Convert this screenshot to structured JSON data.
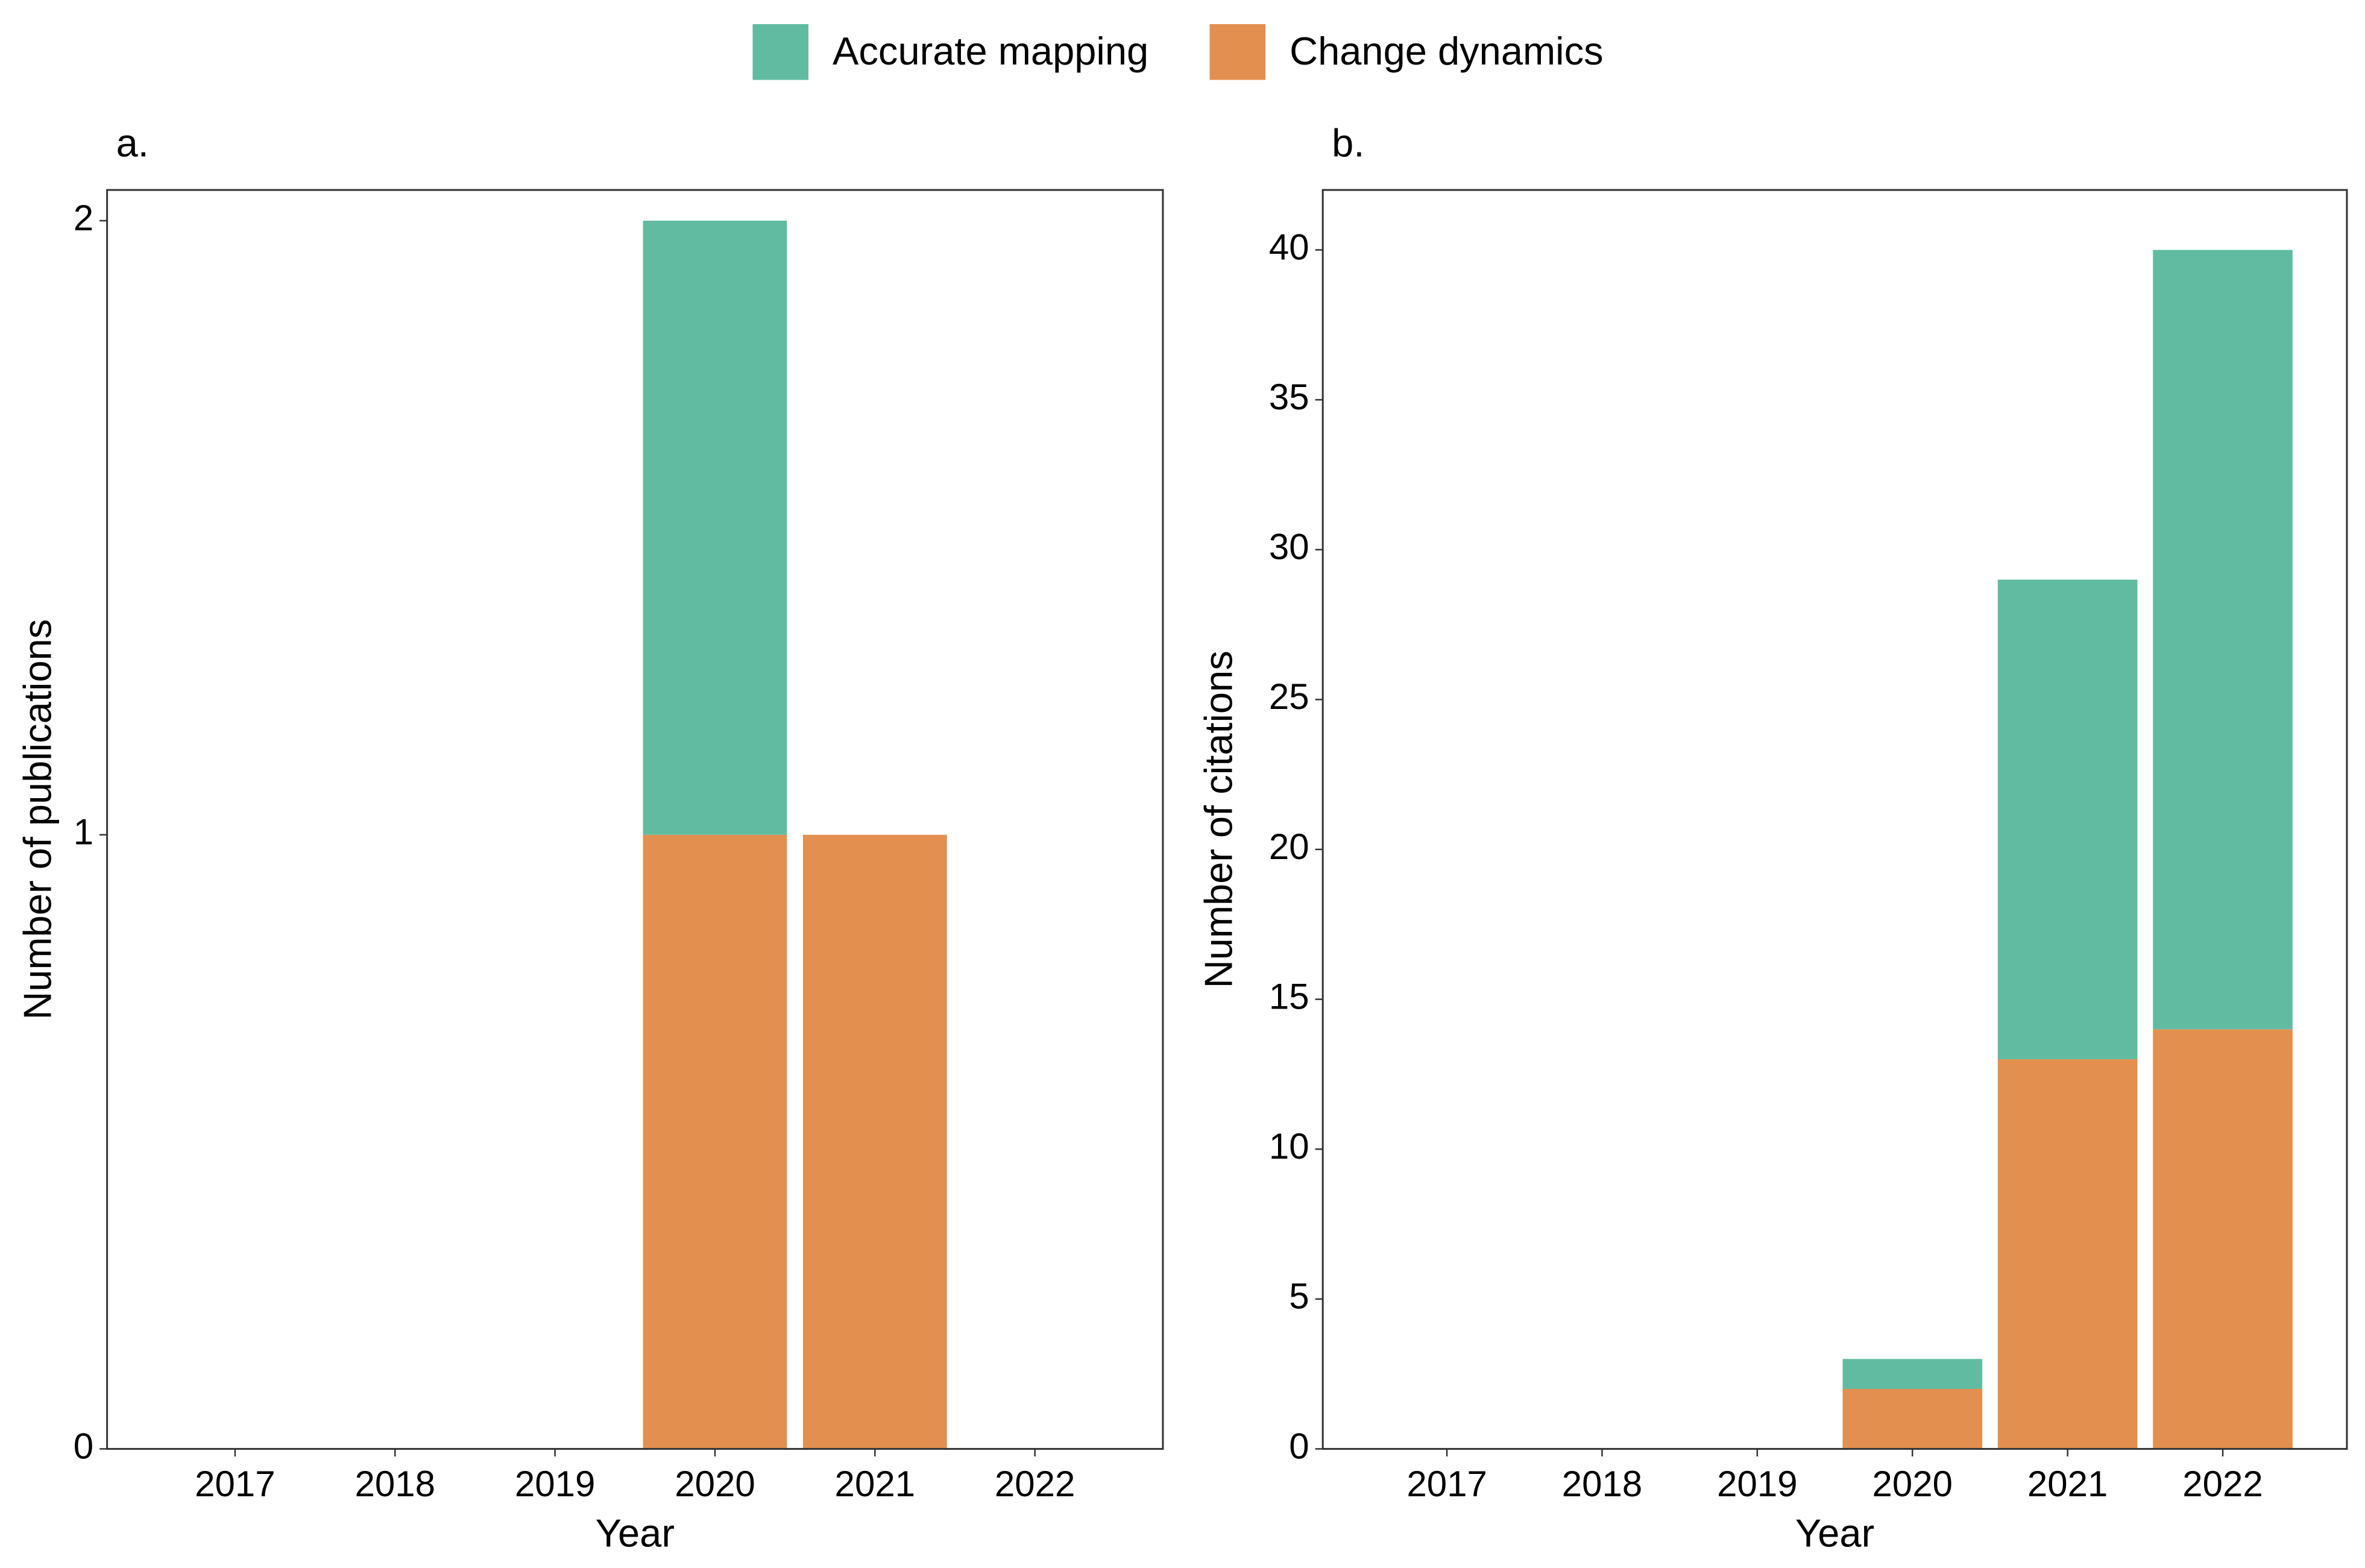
{
  "chart_data": [
    {
      "type": "bar",
      "stacked": true,
      "title": "a.",
      "x_label": "Year",
      "y_label": "Number of publications",
      "categories": [
        "2017",
        "2018",
        "2019",
        "2020",
        "2021",
        "2022"
      ],
      "series": [
        {
          "name": "Accurate mapping",
          "color": "#61bba1",
          "values": [
            0,
            0,
            0,
            1,
            0,
            0
          ]
        },
        {
          "name": "Change dynamics",
          "color": "#e38f4f",
          "values": [
            0,
            0,
            0,
            1,
            1,
            0
          ]
        }
      ],
      "ylim": [
        0,
        2.05
      ],
      "yticks": [
        0,
        1,
        2
      ],
      "grid": false,
      "legend": "top"
    },
    {
      "type": "bar",
      "stacked": true,
      "title": "b.",
      "x_label": "Year",
      "y_label": "Number of citations",
      "categories": [
        "2017",
        "2018",
        "2019",
        "2020",
        "2021",
        "2022"
      ],
      "series": [
        {
          "name": "Accurate mapping",
          "color": "#61bba1",
          "values": [
            0,
            0,
            0,
            1,
            16,
            26
          ]
        },
        {
          "name": "Change dynamics",
          "color": "#e38f4f",
          "values": [
            0,
            0,
            0,
            2,
            13,
            14
          ]
        }
      ],
      "ylim": [
        0,
        42
      ],
      "yticks": [
        0,
        5,
        10,
        15,
        20,
        25,
        30,
        35,
        40
      ],
      "grid": false,
      "legend": "top"
    }
  ]
}
